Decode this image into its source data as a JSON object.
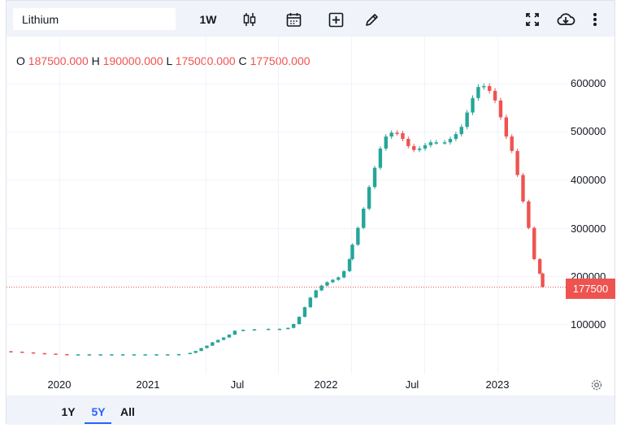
{
  "symbol": {
    "name": "Lithium"
  },
  "toolbar": {
    "interval_label": "1W",
    "icons": [
      "candles-icon",
      "calendar-icon",
      "add-compare-icon",
      "draw-pencil-icon",
      "fullscreen-icon",
      "download-cloud-icon",
      "more-vertical-icon"
    ]
  },
  "ohlc": {
    "o_label": "O",
    "o_value": "187500.000",
    "h_label": "H",
    "h_value": "190000.000",
    "l_label": "L",
    "l_value": "175000.000",
    "c_label": "C",
    "c_value": "177500.000"
  },
  "price_axis": {
    "labels": [
      "600000",
      "500000",
      "400000",
      "300000",
      "200000",
      "100000"
    ]
  },
  "time_axis": {
    "labels": [
      "2020",
      "2021",
      "Jul",
      "2022",
      "Jul",
      "2023"
    ]
  },
  "last_price": "177500",
  "range_selector": {
    "options": [
      "1Y",
      "5Y",
      "All"
    ],
    "active": "5Y"
  },
  "colors": {
    "up": "#26a69a",
    "down": "#ef5350",
    "last_price_line": "#ef5350",
    "accent": "#2962ff"
  },
  "chart_data": {
    "type": "candlestick",
    "title": "Lithium",
    "interval": "1W",
    "x_start": "2019-06",
    "x_end": "2023-04",
    "ylim": [
      0,
      680000
    ],
    "grid": true,
    "series": [
      {
        "values": [
          [
            "2019-06-10",
            45000
          ],
          [
            "2019-07-08",
            44500
          ],
          [
            "2019-08-05",
            43500
          ],
          [
            "2019-09-02",
            42500
          ],
          [
            "2019-09-30",
            41000
          ],
          [
            "2019-10-28",
            39500
          ],
          [
            "2019-11-25",
            38500
          ],
          [
            "2019-12-23",
            37500
          ],
          [
            "2020-01-20",
            37000
          ],
          [
            "2020-02-17",
            37000
          ],
          [
            "2020-03-16",
            37000
          ],
          [
            "2020-04-13",
            37000
          ],
          [
            "2020-05-11",
            37000
          ],
          [
            "2020-06-08",
            37000
          ],
          [
            "2020-07-06",
            37000
          ],
          [
            "2020-08-03",
            37000
          ],
          [
            "2020-08-31",
            37000
          ],
          [
            "2020-09-28",
            37000
          ],
          [
            "2020-10-26",
            37500
          ],
          [
            "2020-11-23",
            40000
          ],
          [
            "2020-12-07",
            44000
          ],
          [
            "2020-12-21",
            50000
          ],
          [
            "2021-01-04",
            55000
          ],
          [
            "2021-01-18",
            62000
          ],
          [
            "2021-02-01",
            67000
          ],
          [
            "2021-02-15",
            72000
          ],
          [
            "2021-03-01",
            78000
          ],
          [
            "2021-03-15",
            86000
          ],
          [
            "2021-04-05",
            88000
          ],
          [
            "2021-05-03",
            89000
          ],
          [
            "2021-06-07",
            90000
          ],
          [
            "2021-07-05",
            90000
          ],
          [
            "2021-07-26",
            92000
          ],
          [
            "2021-08-09",
            100000
          ],
          [
            "2021-08-23",
            115000
          ],
          [
            "2021-09-06",
            135000
          ],
          [
            "2021-09-20",
            155000
          ],
          [
            "2021-10-04",
            170000
          ],
          [
            "2021-10-18",
            180000
          ],
          [
            "2021-11-01",
            187000
          ],
          [
            "2021-11-15",
            192000
          ],
          [
            "2021-11-29",
            197000
          ],
          [
            "2021-12-13",
            210000
          ],
          [
            "2021-12-27",
            235000
          ],
          [
            "2022-01-03",
            265000
          ],
          [
            "2022-01-17",
            300000
          ],
          [
            "2022-01-31",
            340000
          ],
          [
            "2022-02-14",
            385000
          ],
          [
            "2022-02-28",
            425000
          ],
          [
            "2022-03-14",
            465000
          ],
          [
            "2022-03-28",
            490000
          ],
          [
            "2022-04-11",
            498000
          ],
          [
            "2022-04-25",
            497000
          ],
          [
            "2022-05-09",
            485000
          ],
          [
            "2022-05-23",
            470000
          ],
          [
            "2022-06-06",
            462000
          ],
          [
            "2022-06-20",
            465000
          ],
          [
            "2022-07-04",
            472000
          ],
          [
            "2022-07-18",
            478000
          ],
          [
            "2022-08-01",
            478000
          ],
          [
            "2022-08-22",
            478000
          ],
          [
            "2022-09-05",
            485000
          ],
          [
            "2022-09-19",
            495000
          ],
          [
            "2022-10-03",
            510000
          ],
          [
            "2022-10-17",
            540000
          ],
          [
            "2022-10-31",
            570000
          ],
          [
            "2022-11-14",
            593000
          ],
          [
            "2022-11-28",
            595000
          ],
          [
            "2022-12-12",
            585000
          ],
          [
            "2022-12-26",
            565000
          ],
          [
            "2023-01-09",
            530000
          ],
          [
            "2023-01-23",
            490000
          ],
          [
            "2023-02-06",
            460000
          ],
          [
            "2023-02-20",
            410000
          ],
          [
            "2023-03-06",
            355000
          ],
          [
            "2023-03-20",
            300000
          ],
          [
            "2023-04-03",
            235000
          ],
          [
            "2023-04-17",
            205000
          ],
          [
            "2023-04-24",
            177500
          ]
        ]
      }
    ]
  }
}
